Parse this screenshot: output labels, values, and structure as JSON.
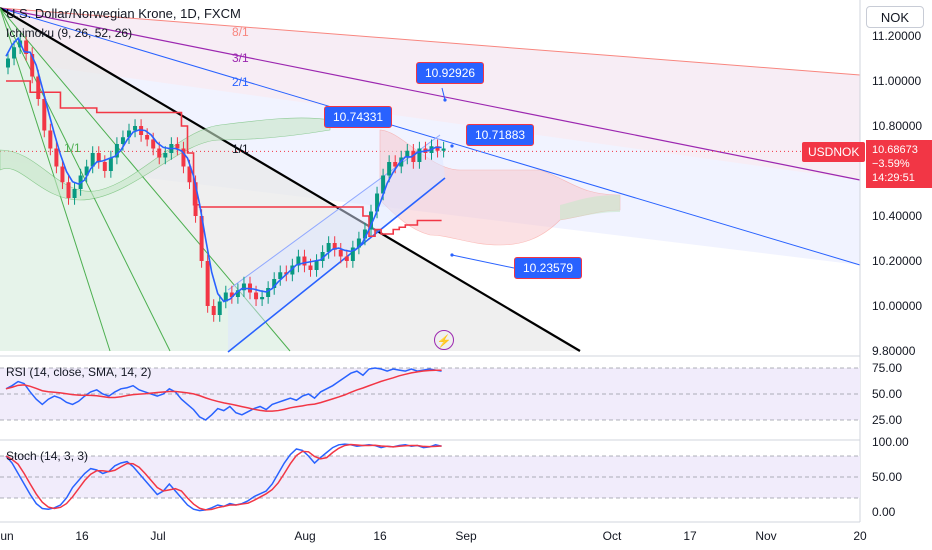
{
  "header": {
    "title": "U.S. Dollar/Norwegian Krone, 1D, FXCM",
    "currency": "NOK",
    "ichimoku_label": "Ichimoku (9, 26, 52, 26)",
    "rsi_label": "RSI (14, close, SMA, 14, 2)",
    "stoch_label": "Stoch (14, 3, 3)"
  },
  "symbol": {
    "ticker": "USDNOK",
    "last_price": "10.68673",
    "change": "−3.59%",
    "countdown": "14:29:51"
  },
  "callouts": [
    "10.92926",
    "10.74331",
    "10.71883",
    "10.23579"
  ],
  "gann_labels": [
    "8/1",
    "3/1",
    "2/1",
    "1/1",
    "1/1"
  ],
  "colors": {
    "up": "#089981",
    "down": "#f23645",
    "tenkan": "#2962ff",
    "kijun": "#f23645",
    "trend": "#000000",
    "channel": "#2962ff",
    "rsi": "#2962ff",
    "rsi_ma": "#f23645",
    "stoch_k": "#2962ff",
    "stoch_d": "#f23645"
  },
  "chart_data": [
    {
      "type": "candlestick",
      "title": "U.S. Dollar/Norwegian Krone, 1D, FXCM",
      "y_ticks": [
        "11.20000",
        "11.00000",
        "10.80000",
        "10.60000",
        "10.40000",
        "10.20000",
        "10.00000",
        "9.80000"
      ],
      "x_ticks": [
        "Jun",
        "16",
        "Jul",
        "Aug",
        "16",
        "Sep",
        "Oct",
        "17",
        "Nov",
        "20"
      ],
      "ylim": [
        9.8,
        11.25
      ],
      "close": [
        11.1,
        11.15,
        11.18,
        11.12,
        11.02,
        10.92,
        10.78,
        10.7,
        10.62,
        10.55,
        10.48,
        10.52,
        10.58,
        10.62,
        10.68,
        10.64,
        10.6,
        10.66,
        10.72,
        10.75,
        10.78,
        10.8,
        10.76,
        10.74,
        10.7,
        10.66,
        10.68,
        10.72,
        10.7,
        10.62,
        10.55,
        10.4,
        10.2,
        10.0,
        9.96,
        10.02,
        10.06,
        10.04,
        10.07,
        10.1,
        10.06,
        10.03,
        10.04,
        10.08,
        10.12,
        10.15,
        10.14,
        10.18,
        10.22,
        10.18,
        10.16,
        10.2,
        10.24,
        10.28,
        10.25,
        10.22,
        10.2,
        10.26,
        10.3,
        10.34,
        10.42,
        10.5,
        10.58,
        10.64,
        10.62,
        10.66,
        10.69,
        10.64,
        10.7,
        10.68,
        10.71,
        10.69,
        10.7
      ],
      "indicators": {
        "ichimoku": "9, 26, 52, 26",
        "rsi": {
          "params": "14, close, SMA, 14, 2",
          "levels": [
            25,
            50,
            75
          ],
          "y_ticks": [
            "75.00",
            "50.00",
            "25.00"
          ]
        },
        "stochastic": {
          "params": "14, 3, 3",
          "levels": [
            20,
            50,
            80
          ],
          "y_ticks": [
            "100.00",
            "50.00",
            "0.00"
          ]
        }
      }
    }
  ]
}
